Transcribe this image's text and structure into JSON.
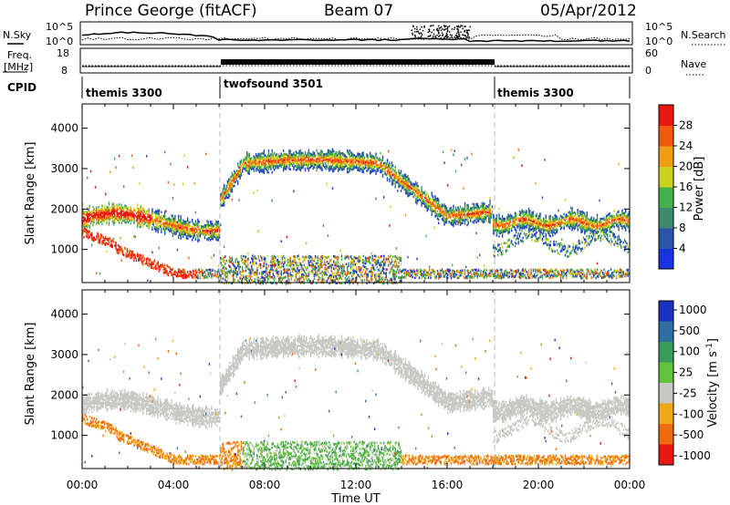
{
  "header": {
    "station": "Prince George (fitACF)",
    "beam": "Beam 07",
    "date": "05/Apr/2012"
  },
  "params": {
    "nsky_label": "N.Sky",
    "nsky_ticks": [
      "10^5",
      "10^0"
    ],
    "nsearch_label": "N.Search",
    "nsearch_ticks": [
      "10^5",
      "10^0"
    ],
    "freq_label": "Freq.",
    "freq_unit": "[MHz]",
    "freq_ticks": [
      "18",
      "8"
    ],
    "nave_label": "Nave",
    "nave_ticks": [
      "60",
      "0"
    ],
    "cpid_label": "CPID",
    "cpid_segments": [
      {
        "name": "themis 3300",
        "start_h": 0,
        "end_h": 6
      },
      {
        "name": "twofsound 3501",
        "start_h": 6,
        "end_h": 18
      },
      {
        "name": "themis 3300",
        "start_h": 18,
        "end_h": 24
      }
    ]
  },
  "chart_data": [
    {
      "type": "heatmap",
      "name": "power",
      "ylabel": "Slant Range [km]",
      "ylim": [
        180,
        4600
      ],
      "y_ticks": [
        "1000",
        "2000",
        "3000",
        "4000"
      ],
      "xlim": [
        0,
        24
      ],
      "x_ticks": [
        "00:00",
        "04:00",
        "08:00",
        "12:00",
        "16:00",
        "20:00",
        "00:00"
      ],
      "colorbar_label": "Power [dB]",
      "colorbar_ticks": [
        "4",
        "8",
        "12",
        "16",
        "20",
        "24",
        "28"
      ],
      "colorscale": [
        "#1a33e0",
        "#2a55a8",
        "#3f8a6a",
        "#44b24a",
        "#c9d21e",
        "#f29c12",
        "#f25a0c",
        "#e81810"
      ]
    },
    {
      "type": "heatmap",
      "name": "velocity",
      "ylabel": "Slant Range [km]",
      "ylim": [
        180,
        4600
      ],
      "y_ticks": [
        "1000",
        "2000",
        "3000",
        "4000"
      ],
      "xlim": [
        0,
        24
      ],
      "x_ticks": [
        "00:00",
        "04:00",
        "08:00",
        "12:00",
        "16:00",
        "20:00",
        "00:00"
      ],
      "xlabel": "Time UT",
      "colorbar_label": "Velocity [m s",
      "colorbar_label_sup": "-1",
      "colorbar_label_end": "]",
      "colorbar_ticks": [
        "1000",
        "500",
        "100",
        "25",
        "-25",
        "-100",
        "-500",
        "-1000"
      ],
      "colorscale": [
        "#1a33c0",
        "#2f6ea0",
        "#3a9a5a",
        "#62c23c",
        "#c9c9c4",
        "#f0a818",
        "#f06a10",
        "#e81810"
      ]
    }
  ]
}
